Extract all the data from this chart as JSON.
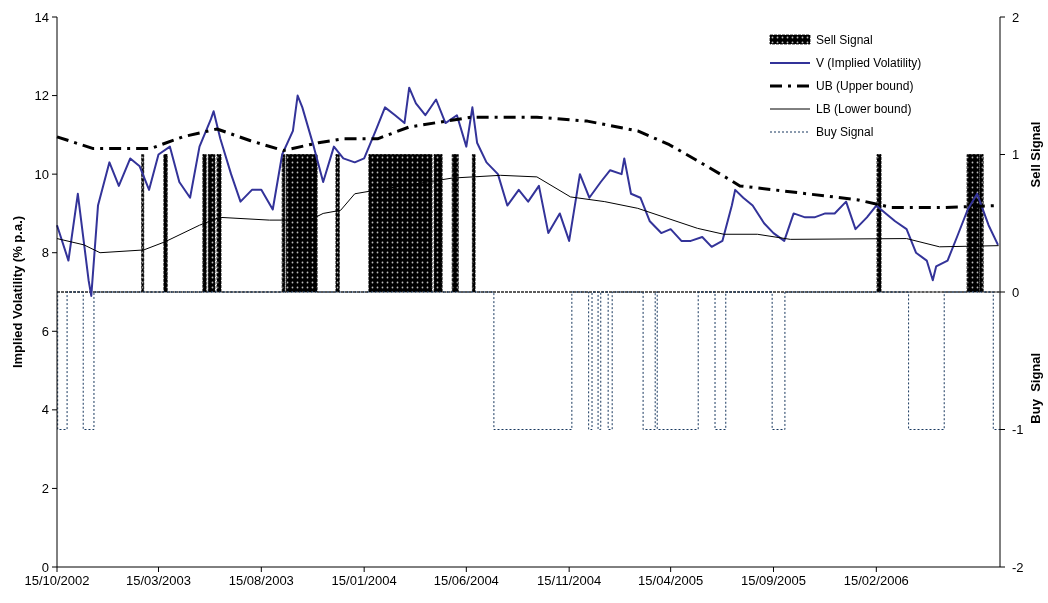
{
  "chart_data": {
    "type": "line",
    "ylabel": "Implied Volatility (% p.a.)",
    "y2label": "Sell Signal",
    "annotations": [
      "Buy  Signal"
    ],
    "legend": "top right",
    "grid": false,
    "xlim": [
      "2002-10-15",
      "2006-08-18"
    ],
    "xticks": [
      {
        "value": "2002-10-15",
        "label": "15/10/2002"
      },
      {
        "value": "2003-03-15",
        "label": "15/03/2003"
      },
      {
        "value": "2003-08-15",
        "label": "15/08/2003"
      },
      {
        "value": "2004-01-15",
        "label": "15/01/2004"
      },
      {
        "value": "2004-06-15",
        "label": "15/06/2004"
      },
      {
        "value": "2004-11-15",
        "label": "15/11/2004"
      },
      {
        "value": "2005-04-15",
        "label": "15/04/2005"
      },
      {
        "value": "2005-09-15",
        "label": "15/09/2005"
      },
      {
        "value": "2006-02-15",
        "label": "15/02/2006"
      }
    ],
    "ylim": [
      0,
      14
    ],
    "yticks": [
      0,
      2,
      4,
      6,
      8,
      10,
      12,
      14
    ],
    "y2lim": [
      -2,
      2
    ],
    "y2ticks": [
      -2,
      -1,
      0,
      1,
      2
    ],
    "series": [
      {
        "name": "Sell Signal",
        "type": "area",
        "axis": "y2",
        "color": "#000000",
        "x": [
          "2002-10-15",
          "2003-02-18",
          "2003-02-18",
          "2003-02-21",
          "2003-02-21",
          "2003-03-23",
          "2003-03-23",
          "2003-03-28",
          "2003-03-28",
          "2003-05-20",
          "2003-05-20",
          "2003-05-25",
          "2003-05-25",
          "2003-05-28",
          "2003-05-28",
          "2003-06-07",
          "2003-06-07",
          "2003-06-10",
          "2003-06-10",
          "2003-06-16",
          "2003-06-16",
          "2003-09-15",
          "2003-09-15",
          "2003-09-19",
          "2003-09-19",
          "2003-09-21",
          "2003-09-21",
          "2003-11-06",
          "2003-11-06",
          "2003-12-04",
          "2003-12-04",
          "2003-12-09",
          "2003-12-09",
          "2004-01-22",
          "2004-01-22",
          "2004-04-25",
          "2004-04-25",
          "2004-04-28",
          "2004-04-28",
          "2004-05-10",
          "2004-05-10",
          "2004-05-25",
          "2004-05-25",
          "2004-06-03",
          "2004-06-03",
          "2004-06-24",
          "2004-06-24",
          "2004-06-28",
          "2004-06-28",
          "2006-02-16",
          "2006-02-16",
          "2006-02-22",
          "2006-02-22",
          "2006-06-30",
          "2006-06-30",
          "2006-07-18",
          "2006-07-18",
          "2006-07-19",
          "2006-07-19",
          "2006-07-24",
          "2006-07-24",
          "2006-08-18"
        ],
        "values": [
          0,
          0,
          1,
          1,
          0,
          0,
          1,
          1,
          0,
          0,
          1,
          1,
          0,
          0,
          1,
          1,
          0,
          0,
          1,
          1,
          0,
          0,
          1,
          1,
          0,
          0,
          1,
          1,
          0,
          0,
          1,
          1,
          0,
          0,
          1,
          1,
          0,
          0,
          1,
          1,
          0,
          0,
          1,
          1,
          0,
          0,
          1,
          1,
          0,
          0,
          1,
          1,
          0,
          0,
          1,
          1,
          0,
          0,
          1,
          1,
          0,
          0
        ]
      },
      {
        "name": "V (Implied Volatility)",
        "color": "#333399",
        "x": [
          "2002-10-15",
          "2002-11-01",
          "2002-11-15",
          "2002-12-01",
          "2002-12-05",
          "2002-12-15",
          "2003-01-01",
          "2003-01-15",
          "2003-02-01",
          "2003-02-15",
          "2003-03-01",
          "2003-03-15",
          "2003-04-01",
          "2003-04-15",
          "2003-05-01",
          "2003-05-15",
          "2003-06-01",
          "2003-06-05",
          "2003-06-15",
          "2003-07-01",
          "2003-07-15",
          "2003-08-01",
          "2003-08-15",
          "2003-09-01",
          "2003-09-15",
          "2003-10-01",
          "2003-10-08",
          "2003-10-15",
          "2003-11-01",
          "2003-11-15",
          "2003-12-01",
          "2003-12-15",
          "2004-01-01",
          "2004-01-15",
          "2004-02-01",
          "2004-02-15",
          "2004-03-01",
          "2004-03-15",
          "2004-03-22",
          "2004-04-01",
          "2004-04-15",
          "2004-05-01",
          "2004-05-15",
          "2004-06-01",
          "2004-06-15",
          "2004-06-24",
          "2004-07-01",
          "2004-07-15",
          "2004-08-01",
          "2004-08-15",
          "2004-09-01",
          "2004-09-15",
          "2004-10-01",
          "2004-10-15",
          "2004-11-01",
          "2004-11-15",
          "2004-12-01",
          "2004-12-15",
          "2005-01-01",
          "2005-01-15",
          "2005-02-01",
          "2005-02-05",
          "2005-02-15",
          "2005-03-01",
          "2005-03-15",
          "2005-04-01",
          "2005-04-15",
          "2005-05-01",
          "2005-05-15",
          "2005-06-01",
          "2005-06-15",
          "2005-07-01",
          "2005-07-15",
          "2005-07-20",
          "2005-08-01",
          "2005-08-15",
          "2005-09-01",
          "2005-09-15",
          "2005-10-01",
          "2005-10-15",
          "2005-11-01",
          "2005-11-15",
          "2005-12-01",
          "2005-12-15",
          "2006-01-01",
          "2006-01-15",
          "2006-02-01",
          "2006-02-15",
          "2006-03-01",
          "2006-03-15",
          "2006-04-01",
          "2006-04-15",
          "2006-05-01",
          "2006-05-10",
          "2006-05-15",
          "2006-06-01",
          "2006-06-15",
          "2006-07-01",
          "2006-07-15",
          "2006-08-01",
          "2006-08-15"
        ],
        "values": [
          8.7,
          7.8,
          9.5,
          7.3,
          6.9,
          9.2,
          10.3,
          9.7,
          10.4,
          10.2,
          9.6,
          10.5,
          10.7,
          9.8,
          9.4,
          10.7,
          11.4,
          11.6,
          10.9,
          10.0,
          9.3,
          9.6,
          9.6,
          9.1,
          10.5,
          11.1,
          12.0,
          11.7,
          10.7,
          9.8,
          10.7,
          10.4,
          10.3,
          10.4,
          11.1,
          11.7,
          11.5,
          11.3,
          12.2,
          11.8,
          11.5,
          11.9,
          11.3,
          11.5,
          10.7,
          11.7,
          10.8,
          10.3,
          10.0,
          9.2,
          9.6,
          9.3,
          9.7,
          8.5,
          9.0,
          8.3,
          10.0,
          9.4,
          9.8,
          10.1,
          10.0,
          10.4,
          9.5,
          9.4,
          8.8,
          8.5,
          8.6,
          8.3,
          8.3,
          8.4,
          8.15,
          8.3,
          9.2,
          9.6,
          9.4,
          9.2,
          8.75,
          8.5,
          8.3,
          9.0,
          8.9,
          8.9,
          9.0,
          9.0,
          9.3,
          8.6,
          8.9,
          9.2,
          9.0,
          8.8,
          8.6,
          8.0,
          7.8,
          7.3,
          7.65,
          7.8,
          8.4,
          9.1,
          9.5,
          8.7,
          8.2
        ]
      },
      {
        "name": "UB (Upper bound)",
        "line_style": "dashed",
        "color": "#000000",
        "x": [
          "2002-10-15",
          "2002-12-08",
          "2003-01-27",
          "2003-03-03",
          "2003-04-20",
          "2003-06-10",
          "2003-07-30",
          "2003-09-17",
          "2003-11-08",
          "2003-12-15",
          "2004-02-04",
          "2004-03-22",
          "2004-06-22",
          "2004-09-28",
          "2004-12-12",
          "2005-02-25",
          "2005-04-13",
          "2005-05-24",
          "2005-07-03",
          "2005-07-27",
          "2005-08-22",
          "2005-11-04",
          "2006-01-17",
          "2006-03-10",
          "2006-05-24",
          "2006-08-16"
        ],
        "values": [
          10.95,
          10.65,
          10.65,
          10.65,
          10.95,
          11.15,
          10.85,
          10.6,
          10.8,
          10.9,
          10.9,
          11.2,
          11.45,
          11.45,
          11.35,
          11.1,
          10.75,
          10.35,
          9.95,
          9.7,
          9.65,
          9.5,
          9.35,
          9.15,
          9.15,
          9.2
        ]
      },
      {
        "name": "LB (Lower bound)",
        "color": "#000000",
        "x": [
          "2002-10-15",
          "2002-11-24",
          "2002-12-18",
          "2003-02-21",
          "2003-03-25",
          "2003-05-15",
          "2003-06-14",
          "2003-08-27",
          "2003-10-26",
          "2003-11-15",
          "2003-12-11",
          "2004-01-01",
          "2004-02-04",
          "2004-05-25",
          "2004-08-05",
          "2004-09-28",
          "2004-11-17",
          "2005-01-07",
          "2005-02-25",
          "2005-05-25",
          "2005-07-03",
          "2005-08-22",
          "2005-10-10",
          "2006-04-01",
          "2006-05-20",
          "2006-08-16"
        ],
        "values": [
          8.36,
          8.2,
          8.0,
          8.07,
          8.28,
          8.7,
          8.9,
          8.83,
          8.83,
          9.0,
          9.08,
          9.5,
          9.6,
          9.9,
          9.97,
          9.93,
          9.42,
          9.3,
          9.13,
          8.62,
          8.47,
          8.47,
          8.34,
          8.36,
          8.15,
          8.18
        ]
      },
      {
        "name": "Buy Signal",
        "type": "step",
        "axis": "y2",
        "line_style": "dotted",
        "color": "#17375e",
        "x": [
          "2002-10-15",
          "2002-10-16",
          "2002-10-30",
          "2002-11-23",
          "2002-12-09",
          "2004-07-26",
          "2004-11-19",
          "2004-12-14",
          "2004-12-19",
          "2004-12-28",
          "2005-01-01",
          "2005-01-12",
          "2005-01-18",
          "2005-03-05",
          "2005-03-23",
          "2005-03-26",
          "2005-05-26",
          "2005-06-20",
          "2005-07-06",
          "2005-09-13",
          "2005-10-02",
          "2006-04-04",
          "2006-05-27",
          "2006-08-08",
          "2006-08-18"
        ],
        "values": [
          0,
          -1,
          0,
          -1,
          0,
          -1,
          0,
          -1,
          0,
          -1,
          0,
          -1,
          0,
          -1,
          0,
          -1,
          0,
          -1,
          0,
          -1,
          0,
          -1,
          0,
          -1,
          -1
        ]
      }
    ]
  }
}
